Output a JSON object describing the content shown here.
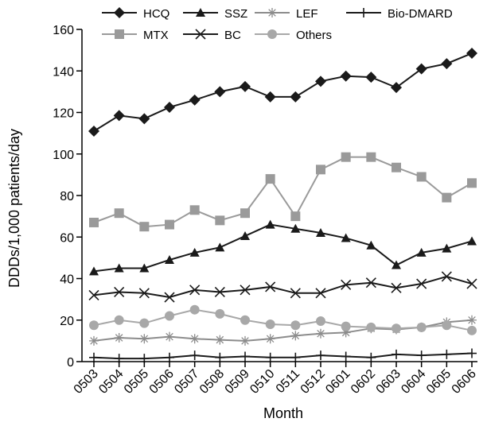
{
  "chart_data": {
    "type": "line",
    "xlabel": "Month",
    "ylabel": "DDDs/1,000 patients/day",
    "ylim": [
      0,
      160
    ],
    "yticks": [
      0,
      20,
      40,
      60,
      80,
      100,
      120,
      140,
      160
    ],
    "grid": false,
    "legend_position": "top",
    "categories": [
      "0503",
      "0504",
      "0505",
      "0506",
      "0507",
      "0508",
      "0509",
      "0510",
      "0511",
      "0512",
      "0601",
      "0602",
      "0603",
      "0604",
      "0605",
      "0606"
    ],
    "series": [
      {
        "name": "HCQ",
        "marker": "diamond",
        "color": "#1a1a1a",
        "values": [
          111,
          118.5,
          117,
          122.5,
          126,
          130,
          132.5,
          127.5,
          127.5,
          135,
          137.5,
          137,
          132,
          141,
          143.5,
          148.5
        ]
      },
      {
        "name": "SSZ",
        "marker": "triangle",
        "color": "#1a1a1a",
        "values": [
          43.5,
          45,
          45,
          49,
          52.5,
          55,
          60.5,
          66,
          64,
          62,
          59.5,
          56,
          46.5,
          52.5,
          54.5,
          58
        ]
      },
      {
        "name": "LEF",
        "marker": "asterisk",
        "color": "#8c8c8c",
        "values": [
          10,
          11.5,
          11,
          12,
          11,
          10.5,
          10,
          11,
          12.5,
          13.5,
          14,
          16,
          15.5,
          16.5,
          19,
          20
        ]
      },
      {
        "name": "Bio-DMARD",
        "marker": "plus",
        "color": "#1a1a1a",
        "values": [
          2,
          1.5,
          1.5,
          2,
          3,
          2,
          2.5,
          2,
          2,
          3,
          2.5,
          2,
          3.5,
          3,
          3.5,
          4
        ]
      },
      {
        "name": "MTX",
        "marker": "square",
        "color": "#9a9a9a",
        "values": [
          67,
          71.5,
          65,
          66,
          73,
          68,
          71.5,
          88,
          70,
          92.5,
          98.5,
          98.5,
          93.5,
          89,
          79,
          86
        ]
      },
      {
        "name": "BC",
        "marker": "x",
        "color": "#1a1a1a",
        "values": [
          32,
          33.5,
          33,
          31,
          34.5,
          33.5,
          34.5,
          36,
          33,
          33,
          37,
          38,
          35.5,
          37.5,
          41,
          37.5
        ]
      },
      {
        "name": "Others",
        "marker": "circle",
        "color": "#a8a8a8",
        "values": [
          17.5,
          20,
          18.5,
          22,
          25,
          23,
          20,
          18,
          17.5,
          19.5,
          17,
          16.5,
          16,
          16.5,
          17.5,
          15
        ]
      }
    ]
  }
}
